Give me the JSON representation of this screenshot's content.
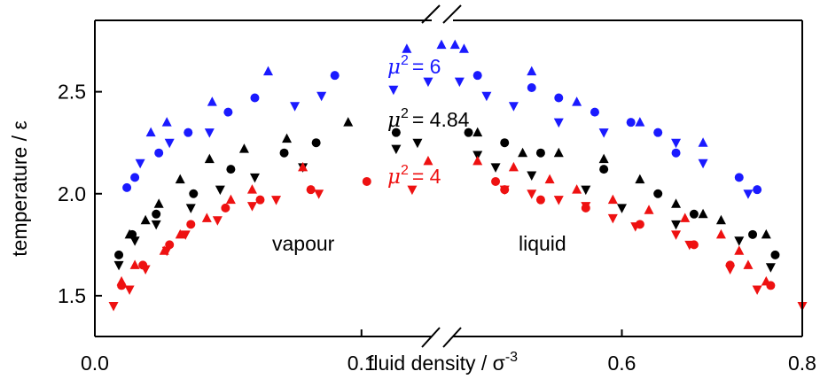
{
  "chart_data": {
    "type": "scatter",
    "xlabel": "fluid density / σ",
    "xlabel_exponent": "-3",
    "ylabel": "temperature / ε",
    "x_ticks": [
      "0.0",
      "0.1",
      "0.6",
      "0.8"
    ],
    "y_ticks": [
      "1.5",
      "2.0",
      "2.5"
    ],
    "ylim": [
      1.3,
      2.85
    ],
    "x_axis_break": [
      0.13,
      0.4
    ],
    "region_labels": [
      "vapour",
      "liquid"
    ],
    "series": [
      {
        "legend_symbol": "μ",
        "legend_exponent": "2",
        "legend_value": "= 6",
        "color": "#1a1aff",
        "up": [
          [
            0.021,
            2.3
          ],
          [
            0.027,
            2.35
          ],
          [
            0.044,
            2.45
          ],
          [
            0.065,
            2.6
          ],
          [
            0.117,
            2.71
          ],
          [
            0.13,
            2.73
          ],
          [
            0.415,
            2.73
          ],
          [
            0.425,
            2.71
          ],
          [
            0.5,
            2.6
          ],
          [
            0.55,
            2.45
          ],
          [
            0.62,
            2.35
          ],
          [
            0.69,
            2.25
          ]
        ],
        "down": [
          [
            0.017,
            2.15
          ],
          [
            0.028,
            2.25
          ],
          [
            0.043,
            2.3
          ],
          [
            0.075,
            2.43
          ],
          [
            0.085,
            2.48
          ],
          [
            0.112,
            2.51
          ],
          [
            0.125,
            2.55
          ],
          [
            0.42,
            2.55
          ],
          [
            0.45,
            2.48
          ],
          [
            0.48,
            2.43
          ],
          [
            0.53,
            2.35
          ],
          [
            0.58,
            2.3
          ],
          [
            0.66,
            2.25
          ],
          [
            0.69,
            2.15
          ],
          [
            0.74,
            2.0
          ]
        ],
        "circle": [
          [
            0.012,
            2.03
          ],
          [
            0.015,
            2.08
          ],
          [
            0.024,
            2.2
          ],
          [
            0.035,
            2.3
          ],
          [
            0.05,
            2.4
          ],
          [
            0.06,
            2.47
          ],
          [
            0.09,
            2.58
          ],
          [
            0.44,
            2.58
          ],
          [
            0.5,
            2.52
          ],
          [
            0.53,
            2.47
          ],
          [
            0.57,
            2.4
          ],
          [
            0.61,
            2.35
          ],
          [
            0.64,
            2.3
          ],
          [
            0.66,
            2.2
          ],
          [
            0.73,
            2.08
          ],
          [
            0.75,
            2.02
          ]
        ]
      },
      {
        "legend_symbol": "μ",
        "legend_exponent": "2",
        "legend_value": "= 4.84",
        "color": "#000000",
        "up": [
          [
            0.013,
            1.8
          ],
          [
            0.019,
            1.87
          ],
          [
            0.024,
            1.95
          ],
          [
            0.032,
            2.07
          ],
          [
            0.043,
            2.17
          ],
          [
            0.056,
            2.22
          ],
          [
            0.072,
            2.27
          ],
          [
            0.095,
            2.35
          ],
          [
            0.44,
            2.3
          ],
          [
            0.49,
            2.2
          ],
          [
            0.53,
            2.2
          ],
          [
            0.58,
            2.17
          ],
          [
            0.62,
            2.07
          ],
          [
            0.66,
            1.95
          ],
          [
            0.69,
            1.9
          ],
          [
            0.71,
            1.87
          ],
          [
            0.76,
            1.8
          ]
        ],
        "down": [
          [
            0.009,
            1.65
          ],
          [
            0.015,
            1.77
          ],
          [
            0.023,
            1.85
          ],
          [
            0.036,
            1.93
          ],
          [
            0.047,
            2.02
          ],
          [
            0.06,
            2.08
          ],
          [
            0.078,
            2.13
          ],
          [
            0.113,
            2.22
          ],
          [
            0.121,
            2.25
          ],
          [
            0.44,
            2.19
          ],
          [
            0.46,
            2.13
          ],
          [
            0.5,
            2.09
          ],
          [
            0.56,
            2.02
          ],
          [
            0.6,
            1.93
          ],
          [
            0.66,
            1.85
          ],
          [
            0.73,
            1.77
          ],
          [
            0.765,
            1.64
          ]
        ],
        "circle": [
          [
            0.009,
            1.7
          ],
          [
            0.014,
            1.8
          ],
          [
            0.023,
            1.9
          ],
          [
            0.037,
            2.0
          ],
          [
            0.051,
            2.12
          ],
          [
            0.071,
            2.2
          ],
          [
            0.083,
            2.25
          ],
          [
            0.113,
            2.3
          ],
          [
            0.43,
            2.3
          ],
          [
            0.47,
            2.25
          ],
          [
            0.51,
            2.2
          ],
          [
            0.58,
            2.12
          ],
          [
            0.64,
            2.0
          ],
          [
            0.68,
            1.9
          ],
          [
            0.745,
            1.8
          ],
          [
            0.77,
            1.7
          ]
        ]
      },
      {
        "legend_symbol": "μ",
        "legend_exponent": "2",
        "legend_value": "= 4",
        "color": "#ee1111",
        "up": [
          [
            0.01,
            1.57
          ],
          [
            0.015,
            1.65
          ],
          [
            0.026,
            1.72
          ],
          [
            0.032,
            1.8
          ],
          [
            0.042,
            1.88
          ],
          [
            0.051,
            1.97
          ],
          [
            0.059,
            2.02
          ],
          [
            0.078,
            2.13
          ],
          [
            0.125,
            2.16
          ],
          [
            0.44,
            2.16
          ],
          [
            0.48,
            2.13
          ],
          [
            0.52,
            2.07
          ],
          [
            0.55,
            2.02
          ],
          [
            0.59,
            1.97
          ],
          [
            0.63,
            1.92
          ],
          [
            0.67,
            1.88
          ],
          [
            0.71,
            1.8
          ],
          [
            0.73,
            1.72
          ],
          [
            0.74,
            1.65
          ],
          [
            0.76,
            1.57
          ]
        ],
        "down": [
          [
            0.007,
            1.45
          ],
          [
            0.013,
            1.53
          ],
          [
            0.019,
            1.63
          ],
          [
            0.027,
            1.72
          ],
          [
            0.034,
            1.8
          ],
          [
            0.046,
            1.87
          ],
          [
            0.059,
            1.94
          ],
          [
            0.068,
            1.97
          ],
          [
            0.084,
            2.0
          ],
          [
            0.119,
            2.02
          ],
          [
            0.47,
            2.02
          ],
          [
            0.5,
            2.0
          ],
          [
            0.53,
            1.97
          ],
          [
            0.56,
            1.94
          ],
          [
            0.59,
            1.88
          ],
          [
            0.615,
            1.84
          ],
          [
            0.66,
            1.8
          ],
          [
            0.675,
            1.75
          ],
          [
            0.72,
            1.63
          ],
          [
            0.75,
            1.53
          ],
          [
            0.8,
            1.45
          ]
        ],
        "circle": [
          [
            0.01,
            1.55
          ],
          [
            0.018,
            1.65
          ],
          [
            0.028,
            1.75
          ],
          [
            0.036,
            1.85
          ],
          [
            0.049,
            1.93
          ],
          [
            0.062,
            1.97
          ],
          [
            0.081,
            2.02
          ],
          [
            0.102,
            2.06
          ],
          [
            0.46,
            2.06
          ],
          [
            0.47,
            2.02
          ],
          [
            0.51,
            1.97
          ],
          [
            0.56,
            1.93
          ],
          [
            0.62,
            1.85
          ],
          [
            0.68,
            1.75
          ],
          [
            0.72,
            1.65
          ],
          [
            0.765,
            1.55
          ]
        ]
      }
    ]
  }
}
